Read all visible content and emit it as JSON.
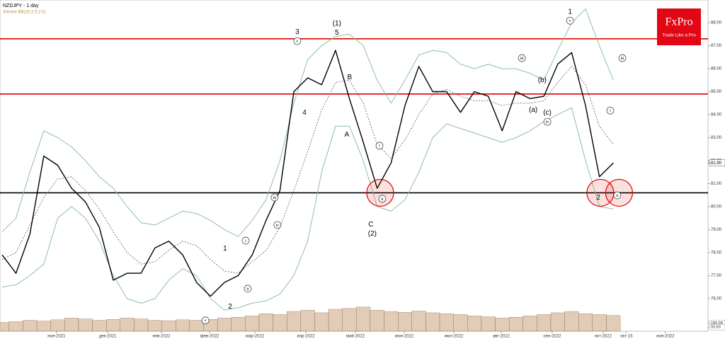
{
  "brand": {
    "name": "FxPro",
    "tagline": "Trade Like a Pro"
  },
  "chart_data": {
    "type": "line",
    "title": "NZDJPY - 1 day",
    "subtitle": "Volume BB(20,2.0,2.0)",
    "x": [
      0,
      6,
      12,
      18,
      24,
      30,
      36,
      42,
      48,
      54,
      60,
      66,
      72,
      78,
      84,
      90,
      96,
      102,
      108,
      114,
      120,
      126,
      132,
      138,
      144,
      150,
      156,
      162,
      168,
      174,
      180,
      186,
      192,
      198,
      204,
      210,
      216,
      222,
      228,
      234,
      240,
      246,
      252,
      258,
      264
    ],
    "xlim": [
      -0.92,
      304.9
    ],
    "xticks": [
      {
        "value": 23.5,
        "label": "ноя-2021"
      },
      {
        "value": 45.6,
        "label": "дек-2021"
      },
      {
        "value": 68.8,
        "label": "янв-2022"
      },
      {
        "value": 89.6,
        "label": "фев-2022"
      },
      {
        "value": 109.2,
        "label": "мар-2022"
      },
      {
        "value": 131.2,
        "label": "апр-2022"
      },
      {
        "value": 152.6,
        "label": "май-2022"
      },
      {
        "value": 173.7,
        "label": "июн-2022"
      },
      {
        "value": 195.1,
        "label": "июл-2022"
      },
      {
        "value": 215.6,
        "label": "авг-2022"
      },
      {
        "value": 237.6,
        "label": "сен-2022"
      },
      {
        "value": 259.6,
        "label": "окт-2022"
      },
      {
        "value": 269.7,
        "label": "окт-15"
      },
      {
        "value": 286.5,
        "label": "ноя-2022"
      }
    ],
    "ylim": [
      74.98,
      88.68
    ],
    "yticks": [
      {
        "value": 76,
        "label": "76.00"
      },
      {
        "value": 77,
        "label": "77.00"
      },
      {
        "value": 78,
        "label": "78.00"
      },
      {
        "value": 79,
        "label": "79.00"
      },
      {
        "value": 80,
        "label": "80.00"
      },
      {
        "value": 81,
        "label": "81.00"
      },
      {
        "value": 82,
        "label": "82.00"
      },
      {
        "value": 83,
        "label": "83.00"
      },
      {
        "value": 84,
        "label": "84.00"
      },
      {
        "value": 85,
        "label": "85.00"
      },
      {
        "value": 86,
        "label": "86.00"
      },
      {
        "value": 87,
        "label": "87.00"
      },
      {
        "value": 88,
        "label": "88.00"
      }
    ],
    "last_price": {
      "value": 81.9,
      "label": "81.90"
    },
    "series": [
      {
        "color": "#000000",
        "width": 1.4,
        "values": [
          77.9,
          77.1,
          78.8,
          82.2,
          81.8,
          80.8,
          80.2,
          79.1,
          76.8,
          77.1,
          77.1,
          78.2,
          78.5,
          77.9,
          76.7,
          76.1,
          76.7,
          77.0,
          77.9,
          79.4,
          80.7,
          85.0,
          85.6,
          85.3,
          86.8,
          84.7,
          82.8,
          80.8,
          81.9,
          84.4,
          86.1,
          85.0,
          85.0,
          84.1,
          85.0,
          84.8,
          83.3,
          85.0,
          84.7,
          84.8,
          86.2,
          86.7,
          84.4,
          81.3,
          81.9
        ]
      },
      {
        "color": "#8fbfa8",
        "width": 1,
        "values": [
          78.9,
          79.5,
          81.5,
          83.3,
          83.0,
          82.6,
          82.0,
          81.3,
          80.8,
          80.0,
          79.3,
          79.2,
          79.5,
          79.8,
          79.7,
          79.4,
          79.0,
          78.7,
          79.4,
          80.3,
          82.0,
          84.5,
          86.4,
          87.0,
          87.4,
          87.5,
          87.0,
          85.5,
          84.5,
          85.5,
          86.6,
          86.8,
          86.7,
          86.2,
          86.0,
          86.2,
          86.0,
          86.0,
          85.8,
          85.5,
          86.8,
          88.0,
          88.6,
          87.0,
          85.5
        ]
      },
      {
        "color": "#8fbfa8",
        "width": 1,
        "values": [
          76.5,
          76.6,
          77.0,
          77.5,
          79.5,
          80.0,
          79.5,
          78.5,
          77.0,
          76.0,
          75.8,
          76.0,
          76.8,
          77.3,
          77.0,
          76.0,
          75.5,
          75.6,
          75.8,
          75.9,
          76.2,
          77.0,
          78.5,
          81.5,
          83.5,
          83.5,
          82.0,
          80.0,
          79.8,
          80.3,
          81.5,
          83.0,
          83.6,
          83.4,
          83.2,
          83.0,
          82.8,
          83.0,
          83.3,
          83.7,
          84.0,
          84.3,
          82.0,
          80.0,
          79.9
        ]
      },
      {
        "color": "#555555",
        "width": 0.8,
        "dashed": true,
        "values": [
          77.7,
          78.0,
          79.2,
          80.4,
          81.2,
          81.3,
          80.7,
          79.9,
          78.9,
          78.0,
          77.5,
          77.6,
          78.1,
          78.5,
          78.3,
          77.7,
          77.2,
          77.1,
          77.6,
          78.1,
          79.1,
          80.7,
          82.4,
          84.2,
          85.4,
          85.5,
          84.5,
          82.7,
          82.1,
          82.9,
          84.0,
          84.9,
          85.1,
          84.8,
          84.6,
          84.6,
          84.4,
          84.5,
          84.5,
          84.6,
          85.4,
          86.1,
          85.3,
          83.5,
          82.7
        ]
      }
    ],
    "volume": {
      "color": "#c9a27e",
      "ylim": [
        0,
        1000
      ],
      "yticks": [
        {
          "value": 186.58,
          "label": "186.58"
        },
        {
          "value": 93.69,
          "label": "93.69"
        }
      ],
      "values": [
        200,
        220,
        250,
        230,
        260,
        300,
        280,
        250,
        270,
        300,
        280,
        250,
        240,
        260,
        250,
        270,
        300,
        320,
        350,
        400,
        380,
        450,
        480,
        420,
        500,
        520,
        550,
        480,
        450,
        430,
        460,
        420,
        400,
        380,
        350,
        330,
        300,
        320,
        350,
        380,
        420,
        450,
        400,
        380,
        360
      ]
    },
    "levels": [
      {
        "value": 87.3,
        "color": "#e00000"
      },
      {
        "value": 84.9,
        "color": "#e00000"
      },
      {
        "value": 80.6,
        "color": "#000000"
      }
    ],
    "highlights": [
      {
        "x": 163.3,
        "y": 80.6
      },
      {
        "x": 258.4,
        "y": 80.6
      },
      {
        "x": 266.5,
        "y": 80.6
      }
    ],
    "annotations": [
      {
        "text": "3",
        "x": 127.5,
        "y": 87.6
      },
      {
        "text": "v",
        "x": 127.5,
        "y": 87.2,
        "circled": true
      },
      {
        "text": "(1)",
        "x": 144.6,
        "y": 87.97
      },
      {
        "text": "5",
        "x": 144.6,
        "y": 87.57
      },
      {
        "text": "B",
        "x": 150.1,
        "y": 85.63
      },
      {
        "text": "A",
        "x": 148.9,
        "y": 83.14
      },
      {
        "text": "4",
        "x": 130.6,
        "y": 84.09
      },
      {
        "text": "i",
        "x": 163,
        "y": 82.65,
        "circled": true
      },
      {
        "text": "ii",
        "x": 164.2,
        "y": 80.34,
        "circled": true
      },
      {
        "text": "C",
        "x": 159.3,
        "y": 79.23
      },
      {
        "text": "(2)",
        "x": 159.9,
        "y": 78.83
      },
      {
        "text": "iii",
        "x": 117.7,
        "y": 80.4,
        "circled": true
      },
      {
        "text": "iv",
        "x": 118.9,
        "y": 79.2,
        "circled": true
      },
      {
        "text": "i",
        "x": 105.2,
        "y": 78.52,
        "circled": true
      },
      {
        "text": "ii",
        "x": 106.1,
        "y": 76.43,
        "circled": true
      },
      {
        "text": "1",
        "x": 96.3,
        "y": 78.18
      },
      {
        "text": "2",
        "x": 98.5,
        "y": 75.66
      },
      {
        "text": "v",
        "x": 87.8,
        "y": 75.05,
        "circled": true
      },
      {
        "text": "iii",
        "x": 224.5,
        "y": 86.46,
        "circled": true
      },
      {
        "text": "(b)",
        "x": 233.3,
        "y": 85.51
      },
      {
        "text": "(a)",
        "x": 229.4,
        "y": 84.22
      },
      {
        "text": "(c)",
        "x": 235.5,
        "y": 84.09
      },
      {
        "text": "iv",
        "x": 235.5,
        "y": 83.69,
        "circled": true
      },
      {
        "text": "1",
        "x": 245.3,
        "y": 88.49
      },
      {
        "text": "v",
        "x": 245.3,
        "y": 88.09,
        "circled": true
      },
      {
        "text": "iii",
        "x": 267.9,
        "y": 86.46,
        "circled": true
      },
      {
        "text": "i",
        "x": 262.7,
        "y": 84.18,
        "circled": true
      },
      {
        "text": "2",
        "x": 257.5,
        "y": 80.4
      },
      {
        "text": "ii",
        "x": 265.7,
        "y": 80.49,
        "circled": true
      }
    ]
  }
}
